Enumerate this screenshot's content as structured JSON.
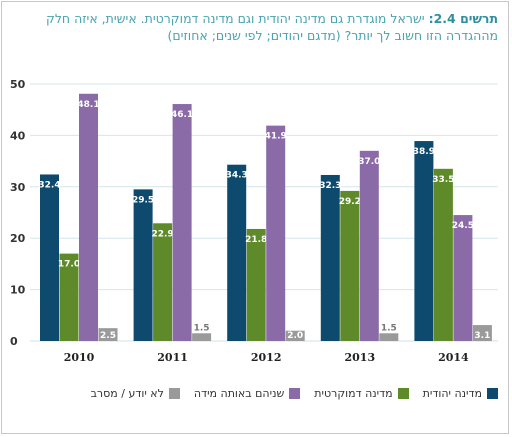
{
  "title": {
    "label": "תרשים 2.4:",
    "line1": "ישראל מוגדרת גם מדינה יהודית וגם מדינה דמוקרטית. אישית, איזה חלק",
    "line2": "מההגדרה הזו חשוב לך יותר? (מדגם יהודים; לפי שנים; אחוזים)"
  },
  "colors": {
    "jewish": "#0d4a6e",
    "democratic": "#8b6aa8",
    "both": "#5e8a2a",
    "dont_know": "#9a9a9a",
    "grid": "#d4e6ea",
    "title": "#2f8fa2"
  },
  "chart_data": {
    "type": "bar",
    "categories": [
      "2010",
      "2011",
      "2012",
      "2013",
      "2014"
    ],
    "series": [
      {
        "name": "מדינה יהודית",
        "key": "jewish",
        "values": [
          32.4,
          29.5,
          34.3,
          32.3,
          38.9
        ]
      },
      {
        "name": "מדינה דמוקרטית",
        "key": "both",
        "values": [
          17.0,
          22.9,
          21.8,
          29.2,
          33.5
        ]
      },
      {
        "name": "שניהם באותה מידה",
        "key": "democratic",
        "values": [
          48.1,
          46.1,
          41.9,
          37.0,
          24.5
        ]
      },
      {
        "name": "לא יודע / מסרב",
        "key": "dont_know",
        "values": [
          2.5,
          1.5,
          2.0,
          1.5,
          3.1
        ]
      }
    ],
    "yticks": [
      0,
      10,
      20,
      30,
      40,
      50
    ],
    "ylim": [
      0,
      50
    ],
    "grid": true,
    "legend_position": "bottom"
  },
  "legend": [
    {
      "label": "מדינה יהודית",
      "key": "jewish"
    },
    {
      "label": "מדינה דמוקרטית",
      "key": "both"
    },
    {
      "label": "שניהם באותה מידה",
      "key": "democratic"
    },
    {
      "label": "לא יודע / מסרב",
      "key": "dont_know"
    }
  ]
}
